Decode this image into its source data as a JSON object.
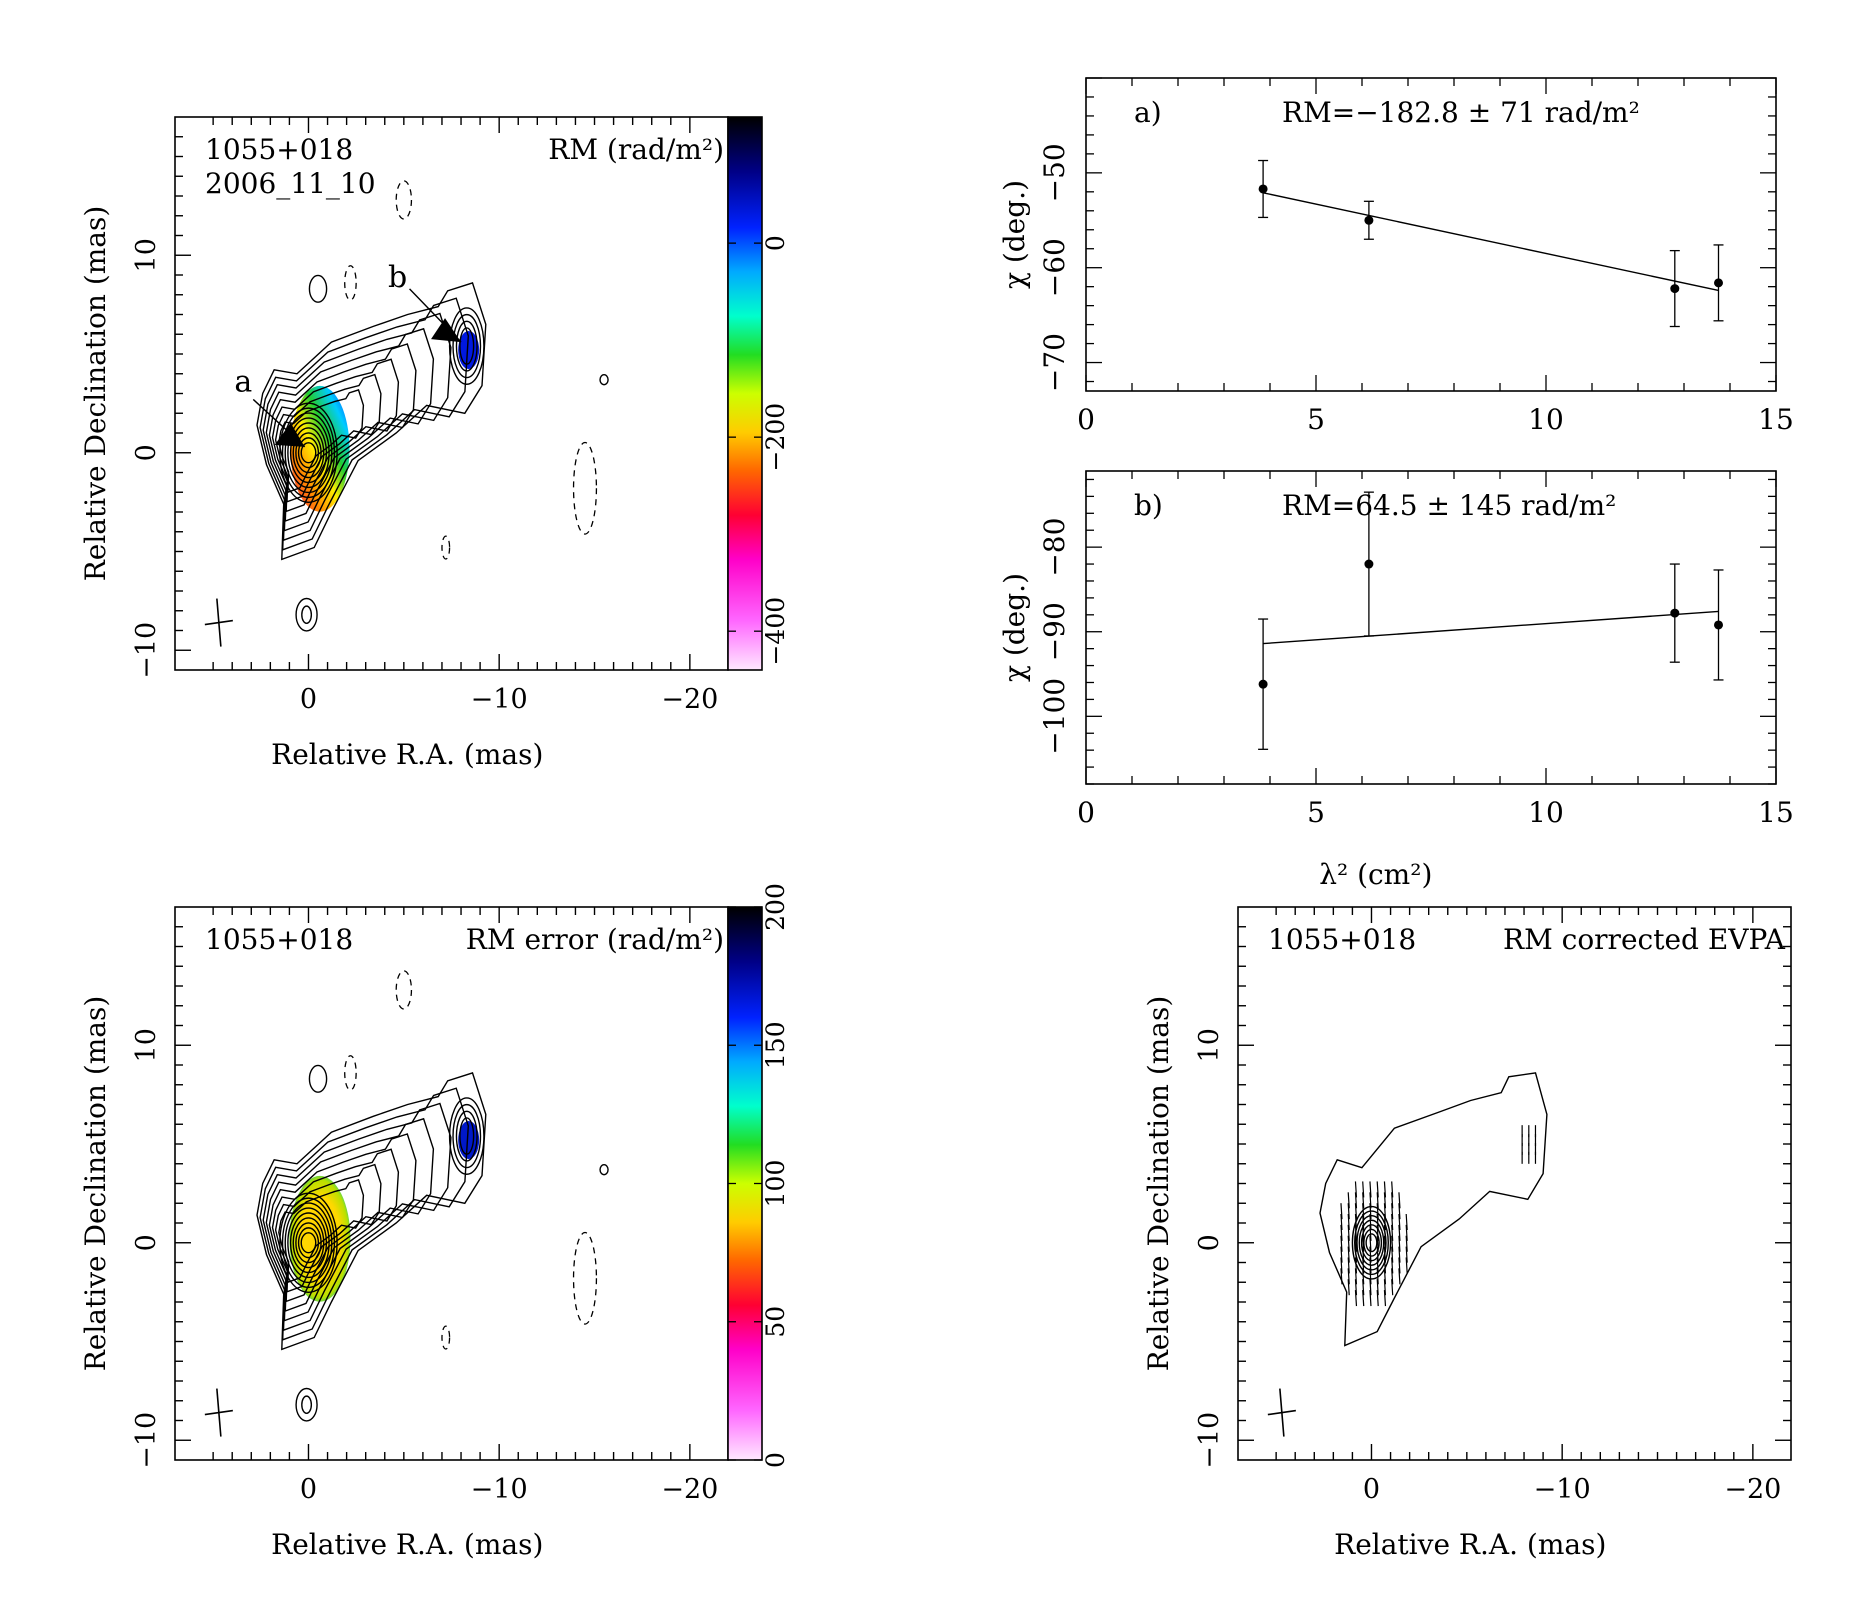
{
  "maps": [
    {
      "id": "rm-map",
      "source": "1055+018",
      "epoch": "2006_11_10",
      "quantity_label": "RM (rad/m²)",
      "xlabel": "Relative R.A. (mas)",
      "ylabel": "Relative Declination (mas)",
      "x_ticks": [
        "0",
        "−10",
        "−20"
      ],
      "y_ticks": [
        "−10",
        "0",
        "10"
      ],
      "colorbar_ticks": [
        "0",
        "−200",
        "−400"
      ],
      "colorbar_range": [
        -440,
        130
      ],
      "markers": [
        "a",
        "b"
      ]
    },
    {
      "id": "rm-error-map",
      "source": "1055+018",
      "quantity_label": "RM error (rad/m²)",
      "xlabel": "Relative R.A. (mas)",
      "ylabel": "Relative Declination (mas)",
      "x_ticks": [
        "0",
        "−10",
        "−20"
      ],
      "y_ticks": [
        "−10",
        "0",
        "10"
      ],
      "colorbar_ticks": [
        "0",
        "50",
        "100",
        "150",
        "200"
      ],
      "colorbar_range": [
        0,
        200
      ]
    },
    {
      "id": "evpa-map",
      "source": "1055+018",
      "quantity_label": "RM corrected EVPA",
      "xlabel": "Relative R.A. (mas)",
      "ylabel": "Relative Declination (mas)",
      "x_ticks": [
        "0",
        "−10",
        "−20"
      ],
      "y_ticks": [
        "−10",
        "0",
        "10"
      ]
    }
  ],
  "chart_data": [
    {
      "type": "scatter",
      "panel": "a)",
      "annotation": "RM=−182.8 ± 71 rad/m²",
      "xlabel": "",
      "ylabel": "χ (deg.)",
      "xlim": [
        0,
        15
      ],
      "ylim": [
        -73,
        -40
      ],
      "x_ticks": [
        "0",
        "5",
        "10",
        "15"
      ],
      "y_ticks": [
        "−70",
        "−60",
        "−50"
      ],
      "points": [
        {
          "x": 3.85,
          "y": -51.7,
          "err": 3.0
        },
        {
          "x": 6.15,
          "y": -55.0,
          "err": 2.0
        },
        {
          "x": 12.8,
          "y": -62.2,
          "err": 4.0
        },
        {
          "x": 13.75,
          "y": -61.6,
          "err": 4.0
        }
      ],
      "fit": {
        "x": [
          3.85,
          13.75
        ],
        "y": [
          -52.1,
          -62.4
        ]
      }
    },
    {
      "type": "scatter",
      "panel": "b)",
      "annotation": "RM=64.5 ± 145 rad/m²",
      "xlabel": "λ² (cm²)",
      "ylabel": "χ (deg.)",
      "xlim": [
        0,
        15
      ],
      "ylim": [
        -108,
        -71
      ],
      "x_ticks": [
        "0",
        "5",
        "10",
        "15"
      ],
      "y_ticks": [
        "−100",
        "−90",
        "−80"
      ],
      "points": [
        {
          "x": 3.85,
          "y": -96.2,
          "err": 7.7
        },
        {
          "x": 6.15,
          "y": -82.0,
          "err": 8.5
        },
        {
          "x": 12.8,
          "y": -87.8,
          "err": 5.8
        },
        {
          "x": 13.75,
          "y": -89.2,
          "err": 6.5
        }
      ],
      "fit": {
        "x": [
          3.85,
          13.75
        ],
        "y": [
          -91.4,
          -87.6
        ]
      }
    }
  ]
}
